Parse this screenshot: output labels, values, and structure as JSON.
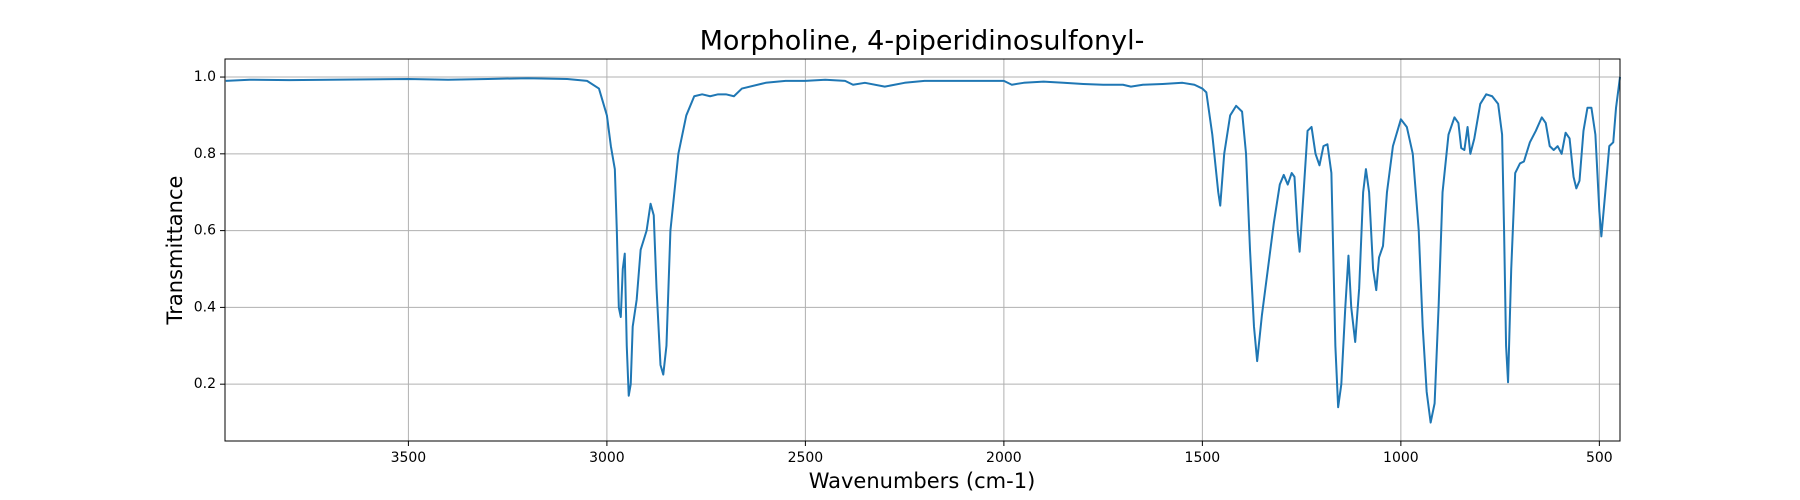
{
  "chart_data": {
    "type": "line",
    "title": "Morpholine, 4-piperidinosulfonyl-",
    "x_label": "Wavenumbers (cm-1)",
    "y_label": "Transmittance",
    "color": "#1f77b4",
    "grid": true,
    "xlim": [
      3962,
      448
    ],
    "ylim": [
      0.052,
      1.047
    ],
    "xticks": [
      3500,
      3000,
      2500,
      2000,
      1500,
      1000,
      500
    ],
    "yticks": [
      0.2,
      0.4,
      0.6,
      0.8,
      {
        "value": 1,
        "label": "1.0"
      }
    ],
    "x": [
      3960,
      3900,
      3800,
      3700,
      3600,
      3500,
      3400,
      3300,
      3200,
      3100,
      3050,
      3020,
      3000,
      2990,
      2980,
      2975,
      2970,
      2965,
      2960,
      2955,
      2950,
      2945,
      2940,
      2935,
      2925,
      2915,
      2900,
      2890,
      2882,
      2875,
      2865,
      2858,
      2850,
      2840,
      2820,
      2800,
      2780,
      2760,
      2740,
      2720,
      2700,
      2680,
      2660,
      2600,
      2550,
      2500,
      2450,
      2400,
      2380,
      2350,
      2300,
      2250,
      2200,
      2100,
      2000,
      1980,
      1950,
      1900,
      1850,
      1800,
      1750,
      1700,
      1680,
      1650,
      1600,
      1550,
      1520,
      1500,
      1490,
      1475,
      1460,
      1455,
      1445,
      1430,
      1415,
      1400,
      1390,
      1380,
      1370,
      1362,
      1350,
      1335,
      1320,
      1305,
      1295,
      1285,
      1275,
      1268,
      1260,
      1255,
      1245,
      1235,
      1225,
      1215,
      1205,
      1195,
      1185,
      1175,
      1165,
      1158,
      1150,
      1140,
      1132,
      1125,
      1115,
      1105,
      1095,
      1088,
      1080,
      1070,
      1062,
      1055,
      1045,
      1035,
      1020,
      1000,
      985,
      970,
      955,
      945,
      935,
      925,
      915,
      905,
      895,
      880,
      865,
      855,
      848,
      840,
      832,
      825,
      815,
      800,
      785,
      770,
      755,
      745,
      740,
      735,
      730,
      722,
      712,
      700,
      690,
      675,
      660,
      645,
      635,
      625,
      615,
      605,
      595,
      585,
      575,
      565,
      558,
      550,
      540,
      530,
      520,
      510,
      500,
      495,
      485,
      475,
      465,
      458,
      453,
      448
    ],
    "values": [
      0.99,
      0.993,
      0.992,
      0.993,
      0.994,
      0.995,
      0.993,
      0.995,
      0.997,
      0.995,
      0.99,
      0.97,
      0.9,
      0.82,
      0.76,
      0.6,
      0.4,
      0.375,
      0.5,
      0.54,
      0.3,
      0.17,
      0.2,
      0.35,
      0.42,
      0.55,
      0.6,
      0.67,
      0.64,
      0.45,
      0.25,
      0.225,
      0.3,
      0.6,
      0.8,
      0.9,
      0.95,
      0.955,
      0.95,
      0.955,
      0.955,
      0.95,
      0.97,
      0.985,
      0.99,
      0.99,
      0.993,
      0.99,
      0.98,
      0.985,
      0.975,
      0.985,
      0.99,
      0.99,
      0.99,
      0.98,
      0.985,
      0.988,
      0.985,
      0.982,
      0.98,
      0.98,
      0.975,
      0.98,
      0.982,
      0.985,
      0.98,
      0.97,
      0.96,
      0.85,
      0.7,
      0.665,
      0.8,
      0.9,
      0.925,
      0.91,
      0.8,
      0.55,
      0.35,
      0.26,
      0.38,
      0.5,
      0.62,
      0.72,
      0.745,
      0.72,
      0.75,
      0.74,
      0.6,
      0.545,
      0.7,
      0.86,
      0.87,
      0.8,
      0.77,
      0.82,
      0.825,
      0.75,
      0.3,
      0.14,
      0.2,
      0.4,
      0.535,
      0.4,
      0.31,
      0.45,
      0.7,
      0.76,
      0.7,
      0.5,
      0.445,
      0.53,
      0.56,
      0.7,
      0.82,
      0.89,
      0.87,
      0.8,
      0.6,
      0.35,
      0.18,
      0.1,
      0.15,
      0.4,
      0.7,
      0.85,
      0.895,
      0.88,
      0.815,
      0.81,
      0.87,
      0.8,
      0.84,
      0.93,
      0.955,
      0.95,
      0.93,
      0.85,
      0.6,
      0.3,
      0.205,
      0.5,
      0.75,
      0.775,
      0.78,
      0.83,
      0.86,
      0.895,
      0.88,
      0.82,
      0.81,
      0.82,
      0.8,
      0.855,
      0.84,
      0.74,
      0.71,
      0.73,
      0.86,
      0.92,
      0.92,
      0.85,
      0.65,
      0.585,
      0.7,
      0.82,
      0.83,
      0.92,
      0.96,
      1.0
    ]
  }
}
